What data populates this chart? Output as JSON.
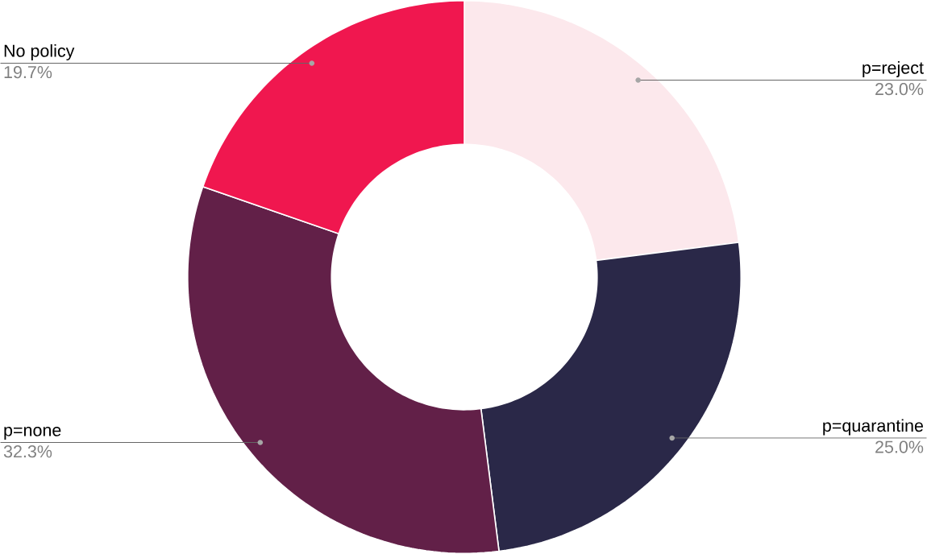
{
  "chart_data": {
    "type": "donut",
    "categories": [
      "p=reject",
      "p=quarantine",
      "p=none",
      "No policy"
    ],
    "values": [
      23.0,
      25.0,
      32.3,
      19.7
    ],
    "colors": [
      "#fce8ec",
      "#2a2848",
      "#622048",
      "#f0174f"
    ],
    "value_labels": [
      "23.0%",
      "25.0%",
      "32.3%",
      "19.7%"
    ]
  }
}
